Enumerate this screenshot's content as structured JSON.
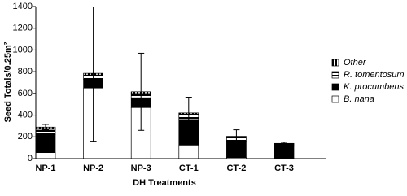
{
  "chart_data": {
    "type": "stacked-bar",
    "x_label": "DH Treatments",
    "y_label": "Seed Totals/0.25m²",
    "categories": [
      "NP-1",
      "NP-2",
      "NP-3",
      "CT-1",
      "CT-2",
      "CT-3"
    ],
    "series": [
      {
        "name": "B. nana",
        "color": "#ffffff",
        "pattern": "solid",
        "values": [
          55,
          650,
          470,
          125,
          10,
          0
        ]
      },
      {
        "name": "K. procumbens",
        "color": "#000000",
        "pattern": "solid",
        "values": [
          165,
          80,
          90,
          235,
          150,
          125
        ]
      },
      {
        "name": "R. tomentosum",
        "color": "#000000",
        "pattern": "horizontal-stripes",
        "values": [
          50,
          40,
          40,
          50,
          35,
          10
        ]
      },
      {
        "name": "Other",
        "color": "#000000",
        "pattern": "vertical-stripes",
        "values": [
          20,
          15,
          15,
          10,
          10,
          5
        ]
      }
    ],
    "errors": [
      25,
      625,
      355,
      145,
      60,
      10
    ],
    "ylim": [
      0,
      1400
    ],
    "yticks": [
      0,
      200,
      400,
      600,
      800,
      1000,
      1200,
      1400
    ],
    "legend": "right"
  }
}
